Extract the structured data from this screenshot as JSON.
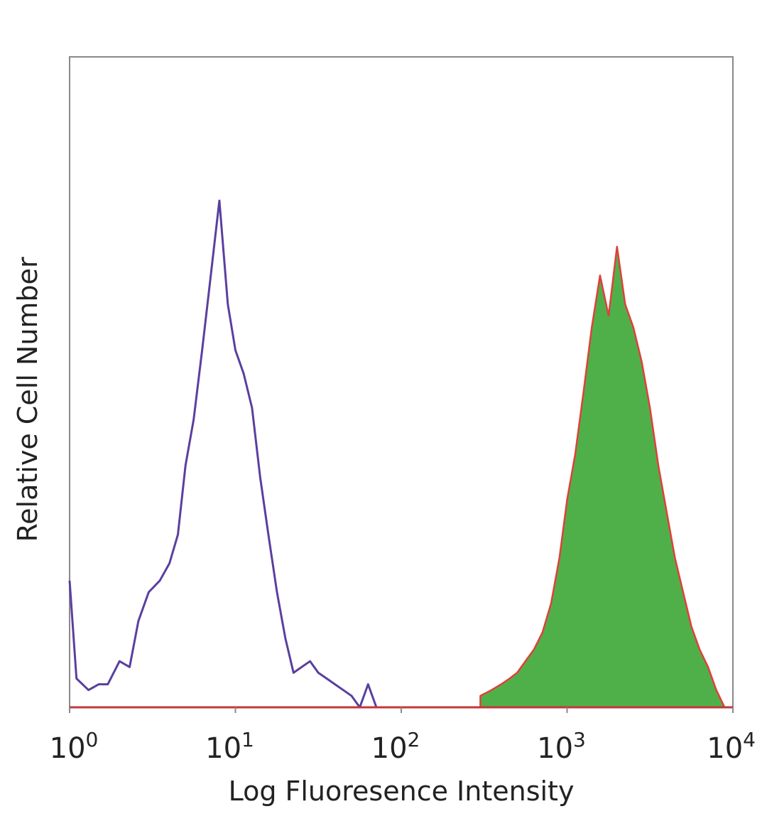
{
  "chart_data": {
    "type": "area",
    "xlabel": "Log Fluoresence Intensity",
    "ylabel": "Relative Cell Number",
    "xscale": "log",
    "xlim": [
      1,
      10000
    ],
    "ylim": [
      0,
      1
    ],
    "grid": false,
    "x_ticks": [
      {
        "base": "10",
        "exp": "0",
        "value": 1
      },
      {
        "base": "10",
        "exp": "1",
        "value": 10
      },
      {
        "base": "10",
        "exp": "2",
        "value": 100
      },
      {
        "base": "10",
        "exp": "3",
        "value": 1000
      },
      {
        "base": "10",
        "exp": "4",
        "value": 10000
      }
    ],
    "series": [
      {
        "style": "outline",
        "color": "#5a3f9e",
        "x": [
          1.0,
          1.1,
          1.3,
          1.5,
          1.7,
          2.0,
          2.3,
          2.6,
          3.0,
          3.5,
          4.0,
          4.5,
          5.0,
          5.6,
          6.3,
          7.1,
          8.0,
          9.0,
          10.0,
          11.2,
          12.6,
          14.1,
          15.8,
          17.8,
          20.0,
          22.4,
          25.1,
          28.2,
          31.6,
          35.5,
          39.8,
          44.7,
          50.1,
          56.2,
          63.1,
          70.8
        ],
        "values": [
          0.22,
          0.05,
          0.03,
          0.04,
          0.04,
          0.08,
          0.07,
          0.15,
          0.2,
          0.22,
          0.25,
          0.3,
          0.42,
          0.5,
          0.62,
          0.75,
          0.88,
          0.7,
          0.62,
          0.58,
          0.52,
          0.4,
          0.3,
          0.2,
          0.12,
          0.06,
          0.07,
          0.08,
          0.06,
          0.05,
          0.04,
          0.03,
          0.02,
          0.0,
          0.04,
          0.0
        ]
      },
      {
        "style": "filled",
        "color": "#4fb04a",
        "edge_color": "#e0403a",
        "x": [
          300,
          350,
          400,
          450,
          500,
          560,
          630,
          710,
          800,
          900,
          1000,
          1120,
          1260,
          1410,
          1580,
          1780,
          2000,
          2240,
          2510,
          2820,
          3160,
          3550,
          3980,
          4470,
          5010,
          5620,
          6310,
          7080,
          7940,
          8910
        ],
        "values": [
          0.02,
          0.03,
          0.04,
          0.05,
          0.06,
          0.08,
          0.1,
          0.13,
          0.18,
          0.26,
          0.36,
          0.44,
          0.55,
          0.66,
          0.75,
          0.68,
          0.8,
          0.7,
          0.66,
          0.6,
          0.52,
          0.42,
          0.34,
          0.26,
          0.2,
          0.14,
          0.1,
          0.07,
          0.03,
          0.0
        ]
      }
    ]
  }
}
